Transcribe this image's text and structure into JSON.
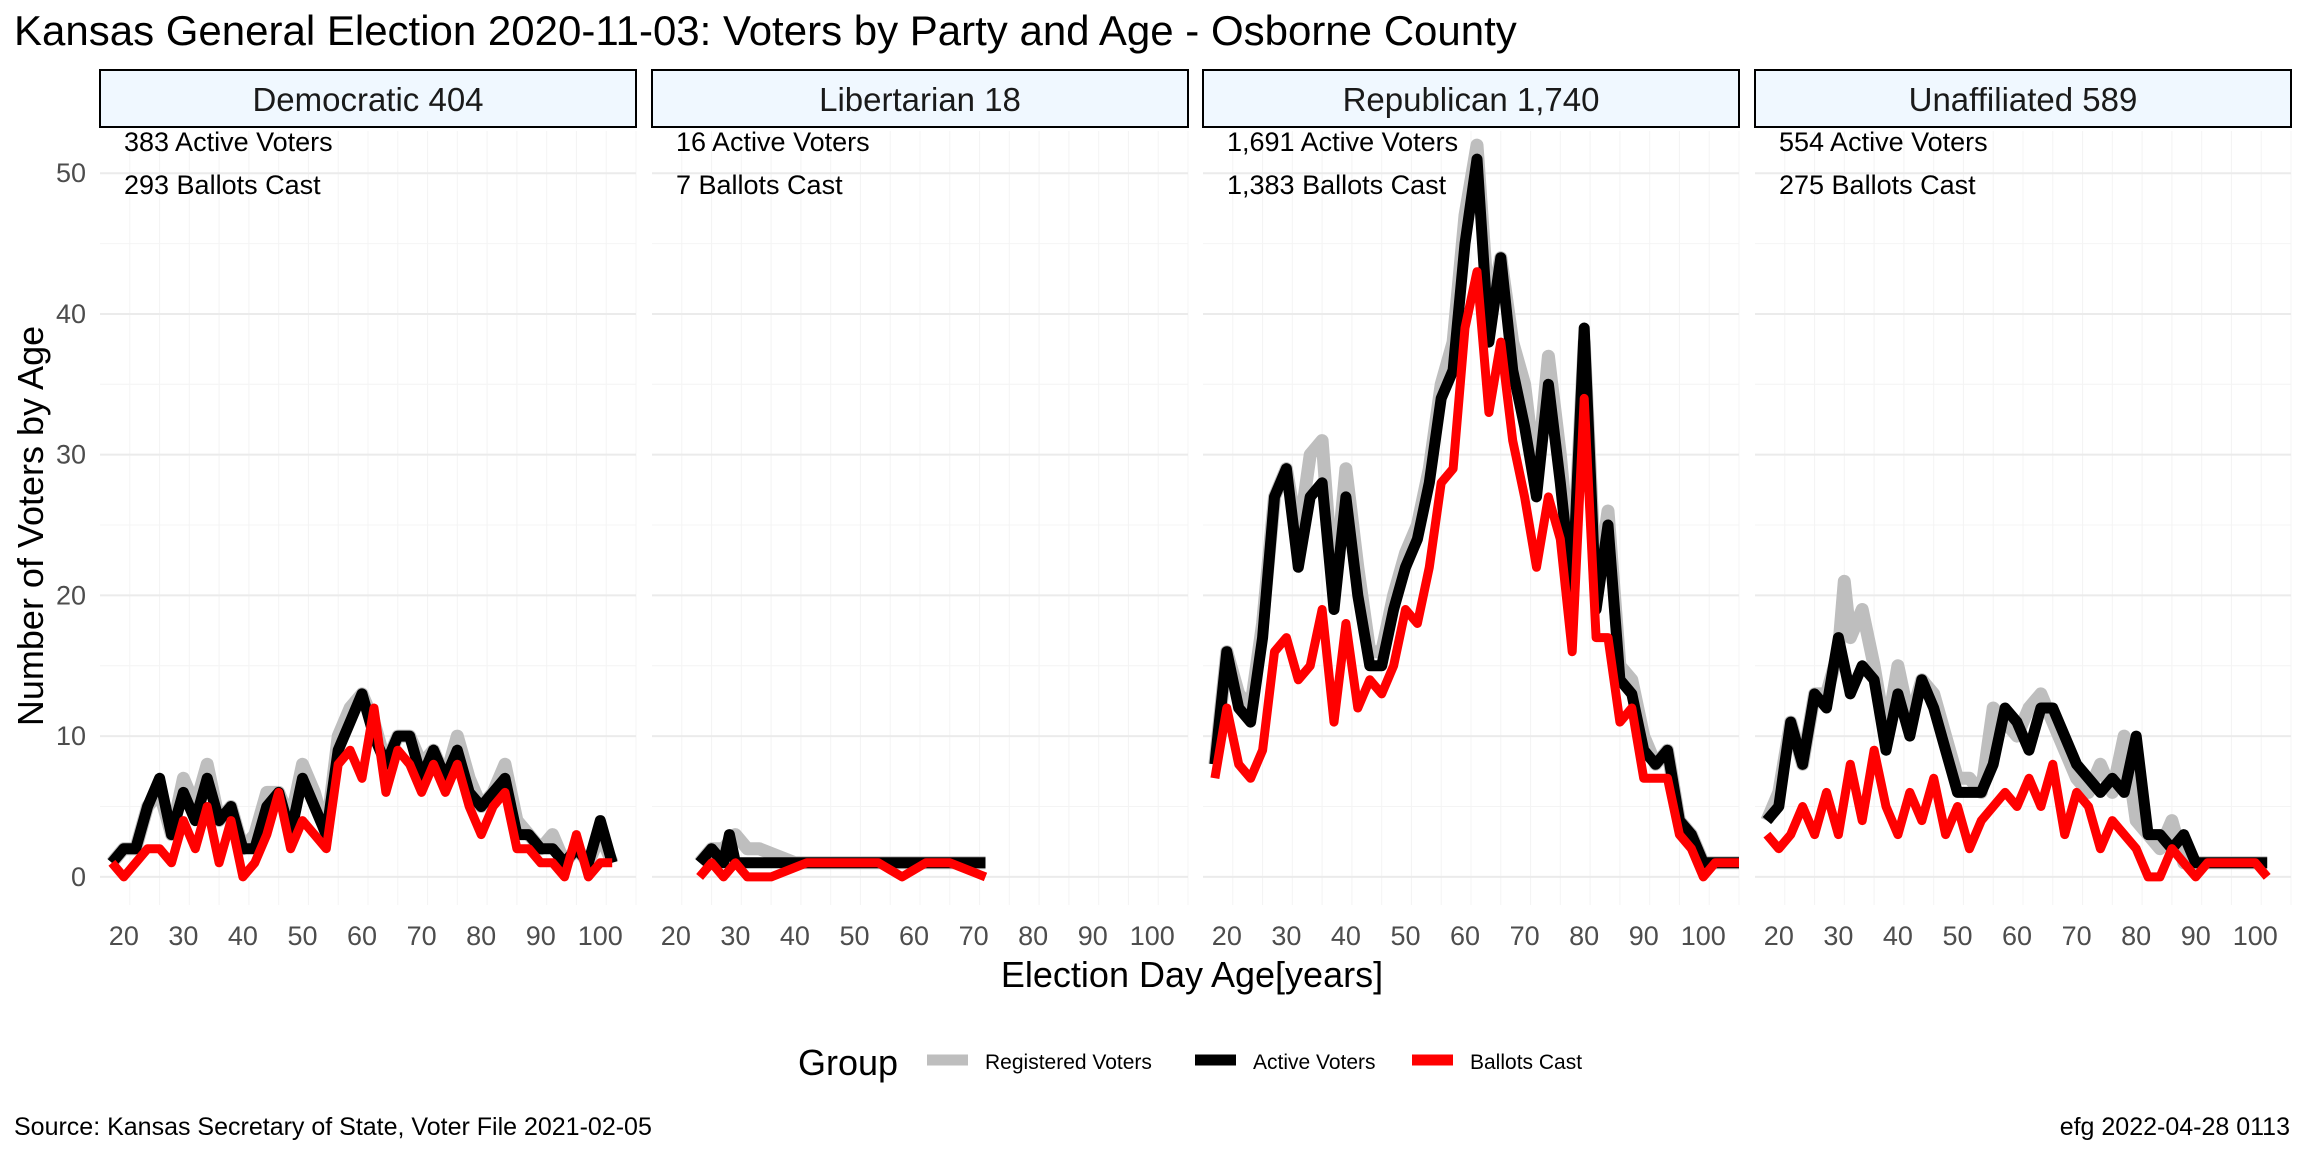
{
  "chart_data": {
    "type": "line",
    "title": "Kansas General Election 2020-11-03:  Voters by Party and Age - Osborne County",
    "xlabel": "Election Day Age[years]",
    "ylabel": "Number of Voters by Age",
    "xlim": [
      16,
      106
    ],
    "ylim": [
      -2,
      53
    ],
    "x_ticks": [
      20,
      30,
      40,
      50,
      60,
      70,
      80,
      90,
      100
    ],
    "y_ticks": [
      0,
      10,
      20,
      30,
      40,
      50
    ],
    "grid": true,
    "legend": {
      "title": "Group",
      "position": "bottom",
      "entries": [
        {
          "name": "Registered Voters",
          "color": "#bebebe"
        },
        {
          "name": "Active Voters",
          "color": "#000000"
        },
        {
          "name": "Ballots Cast",
          "color": "#ff0000"
        }
      ]
    },
    "panels": [
      {
        "title": "Democratic 404",
        "annotations": [
          "383 Active Voters",
          "293 Ballots Cast"
        ],
        "series": [
          {
            "name": "Registered Voters",
            "x": [
              18,
              20,
              22,
              24,
              26,
              28,
              30,
              32,
              34,
              36,
              38,
              40,
              42,
              44,
              46,
              48,
              50,
              52,
              54,
              56,
              58,
              60,
              62,
              64,
              66,
              68,
              70,
              72,
              74,
              76,
              78,
              80,
              82,
              84,
              86,
              88,
              90,
              92,
              94,
              96,
              98,
              100,
              102
            ],
            "y": [
              1,
              2,
              2,
              5,
              6,
              3,
              7,
              5,
              8,
              4,
              5,
              2,
              3,
              6,
              6,
              4,
              8,
              6,
              3,
              10,
              12,
              13,
              11,
              8,
              10,
              10,
              8,
              9,
              7,
              10,
              7,
              5,
              6,
              8,
              4,
              3,
              2,
              3,
              1,
              2,
              1,
              3,
              1
            ]
          },
          {
            "name": "Active Voters",
            "x": [
              18,
              20,
              22,
              24,
              26,
              28,
              30,
              32,
              34,
              36,
              38,
              40,
              42,
              44,
              46,
              48,
              50,
              52,
              54,
              56,
              58,
              60,
              62,
              64,
              66,
              68,
              70,
              72,
              74,
              76,
              78,
              80,
              82,
              84,
              86,
              88,
              90,
              92,
              94,
              96,
              98,
              100,
              102
            ],
            "y": [
              1,
              2,
              2,
              5,
              7,
              3,
              6,
              4,
              7,
              4,
              5,
              2,
              2,
              5,
              6,
              3,
              7,
              5,
              3,
              9,
              11,
              13,
              10,
              8,
              10,
              10,
              7,
              9,
              7,
              9,
              6,
              5,
              6,
              7,
              3,
              3,
              2,
              2,
              1,
              2,
              1,
              4,
              1
            ]
          },
          {
            "name": "Ballots Cast",
            "x": [
              18,
              20,
              22,
              24,
              26,
              28,
              30,
              32,
              34,
              36,
              38,
              40,
              42,
              44,
              46,
              48,
              50,
              52,
              54,
              56,
              58,
              60,
              62,
              64,
              66,
              68,
              70,
              72,
              74,
              76,
              78,
              80,
              82,
              84,
              86,
              88,
              90,
              92,
              94,
              96,
              98,
              100,
              102
            ],
            "y": [
              1,
              0,
              1,
              2,
              2,
              1,
              4,
              2,
              5,
              1,
              4,
              0,
              1,
              3,
              6,
              2,
              4,
              3,
              2,
              8,
              9,
              7,
              12,
              6,
              9,
              8,
              6,
              8,
              6,
              8,
              5,
              3,
              5,
              6,
              2,
              2,
              1,
              1,
              0,
              3,
              0,
              1,
              1
            ]
          }
        ]
      },
      {
        "title": "Libertarian 18",
        "annotations": [
          "16 Active Voters",
          "7 Ballots Cast"
        ],
        "series": [
          {
            "name": "Registered Voters",
            "x": [
              24,
              26,
              28,
              30,
              32,
              34,
              40,
              50,
              60,
              66,
              72
            ],
            "y": [
              1,
              2,
              2,
              3,
              2,
              2,
              1,
              1,
              1,
              1,
              1
            ]
          },
          {
            "name": "Active Voters",
            "x": [
              24,
              26,
              28,
              29,
              30,
              32,
              36,
              40,
              50,
              60,
              66,
              72
            ],
            "y": [
              1,
              2,
              1,
              3,
              1,
              1,
              1,
              1,
              1,
              1,
              1,
              1
            ]
          },
          {
            "name": "Ballots Cast",
            "x": [
              24,
              26,
              28,
              30,
              32,
              36,
              42,
              48,
              54,
              58,
              62,
              66,
              72
            ],
            "y": [
              0,
              1,
              0,
              1,
              0,
              0,
              1,
              1,
              1,
              0,
              1,
              1,
              0
            ]
          }
        ]
      },
      {
        "title": "Republican 1,740",
        "annotations": [
          "1,691 Active Voters",
          "1,383 Ballots Cast"
        ],
        "series": [
          {
            "name": "Registered Voters",
            "x": [
              18,
              20,
              22,
              24,
              26,
              28,
              30,
              32,
              34,
              36,
              38,
              40,
              42,
              44,
              46,
              48,
              50,
              52,
              54,
              56,
              58,
              60,
              62,
              64,
              66,
              68,
              70,
              72,
              74,
              76,
              78,
              80,
              82,
              84,
              86,
              88,
              90,
              92,
              94,
              96,
              98,
              100,
              102,
              104,
              106
            ],
            "y": [
              8,
              16,
              13,
              12,
              18,
              27,
              29,
              24,
              30,
              31,
              20,
              29,
              22,
              16,
              16,
              20,
              23,
              25,
              29,
              35,
              38,
              47,
              52,
              40,
              44,
              38,
              35,
              28,
              37,
              30,
              21,
              38,
              20,
              26,
              15,
              14,
              10,
              8,
              9,
              4,
              3,
              1,
              1,
              1,
              1
            ]
          },
          {
            "name": "Active Voters",
            "x": [
              18,
              20,
              22,
              24,
              26,
              28,
              30,
              32,
              34,
              36,
              38,
              40,
              42,
              44,
              46,
              48,
              50,
              52,
              54,
              56,
              58,
              60,
              62,
              64,
              66,
              68,
              70,
              72,
              74,
              76,
              78,
              80,
              82,
              84,
              86,
              88,
              90,
              92,
              94,
              96,
              98,
              100,
              102,
              104,
              106
            ],
            "y": [
              8,
              16,
              12,
              11,
              17,
              27,
              29,
              22,
              27,
              28,
              19,
              27,
              20,
              15,
              15,
              19,
              22,
              24,
              28,
              34,
              36,
              45,
              51,
              38,
              44,
              36,
              32,
              27,
              35,
              28,
              20,
              39,
              19,
              25,
              14,
              13,
              9,
              8,
              9,
              4,
              3,
              1,
              1,
              1,
              1
            ]
          },
          {
            "name": "Ballots Cast",
            "x": [
              18,
              20,
              22,
              24,
              26,
              28,
              30,
              32,
              34,
              36,
              38,
              40,
              42,
              44,
              46,
              48,
              50,
              52,
              54,
              56,
              58,
              60,
              62,
              64,
              66,
              68,
              70,
              72,
              74,
              76,
              78,
              80,
              82,
              84,
              86,
              88,
              90,
              92,
              94,
              96,
              98,
              100,
              102,
              104,
              106
            ],
            "y": [
              7,
              12,
              8,
              7,
              9,
              16,
              17,
              14,
              15,
              19,
              11,
              18,
              12,
              14,
              13,
              15,
              19,
              18,
              22,
              28,
              29,
              39,
              43,
              33,
              38,
              31,
              27,
              22,
              27,
              24,
              16,
              34,
              17,
              17,
              11,
              12,
              7,
              7,
              7,
              3,
              2,
              0,
              1,
              1,
              1
            ]
          }
        ]
      },
      {
        "title": "Unaffiliated 589",
        "annotations": [
          "554 Active Voters",
          "275 Ballots Cast"
        ],
        "series": [
          {
            "name": "Registered Voters",
            "x": [
              18,
              20,
              22,
              24,
              26,
              28,
              30,
              31,
              32,
              34,
              36,
              38,
              40,
              42,
              44,
              46,
              48,
              50,
              52,
              54,
              56,
              58,
              60,
              62,
              64,
              66,
              68,
              70,
              72,
              74,
              76,
              78,
              80,
              82,
              84,
              86,
              88,
              90,
              92,
              94,
              96,
              98,
              100,
              102
            ],
            "y": [
              4,
              6,
              11,
              8,
              13,
              13,
              16,
              21,
              17,
              19,
              15,
              10,
              15,
              11,
              14,
              13,
              10,
              7,
              7,
              6,
              12,
              11,
              10,
              12,
              13,
              11,
              9,
              7,
              6,
              8,
              6,
              10,
              4,
              3,
              2,
              4,
              1,
              1,
              1,
              1,
              1,
              1,
              1,
              1
            ]
          },
          {
            "name": "Active Voters",
            "x": [
              18,
              20,
              22,
              24,
              26,
              28,
              30,
              32,
              34,
              36,
              38,
              40,
              42,
              44,
              46,
              48,
              50,
              52,
              54,
              56,
              58,
              60,
              62,
              64,
              66,
              68,
              70,
              72,
              74,
              76,
              78,
              80,
              82,
              84,
              86,
              88,
              90,
              92,
              94,
              96,
              98,
              100,
              102
            ],
            "y": [
              4,
              5,
              11,
              8,
              13,
              12,
              17,
              13,
              15,
              14,
              9,
              13,
              10,
              14,
              12,
              9,
              6,
              6,
              6,
              8,
              12,
              11,
              9,
              12,
              12,
              10,
              8,
              7,
              6,
              7,
              6,
              10,
              3,
              3,
              2,
              3,
              1,
              1,
              1,
              1,
              1,
              1,
              1
            ]
          },
          {
            "name": "Ballots Cast",
            "x": [
              18,
              20,
              22,
              24,
              26,
              28,
              30,
              32,
              34,
              36,
              38,
              40,
              42,
              44,
              46,
              48,
              50,
              52,
              54,
              56,
              58,
              60,
              62,
              64,
              66,
              68,
              70,
              72,
              74,
              76,
              78,
              80,
              82,
              84,
              86,
              88,
              90,
              92,
              94,
              96,
              98,
              100,
              102
            ],
            "y": [
              3,
              2,
              3,
              5,
              3,
              6,
              3,
              8,
              4,
              9,
              5,
              3,
              6,
              4,
              7,
              3,
              5,
              2,
              4,
              5,
              6,
              5,
              7,
              5,
              8,
              3,
              6,
              5,
              2,
              4,
              3,
              2,
              0,
              0,
              2,
              1,
              0,
              1,
              1,
              1,
              1,
              1,
              0
            ]
          }
        ]
      }
    ]
  },
  "footer": {
    "source": "Source:  Kansas Secretary of State, Voter File  2021-02-05",
    "stamp": "efg 2022-04-28 0113"
  }
}
